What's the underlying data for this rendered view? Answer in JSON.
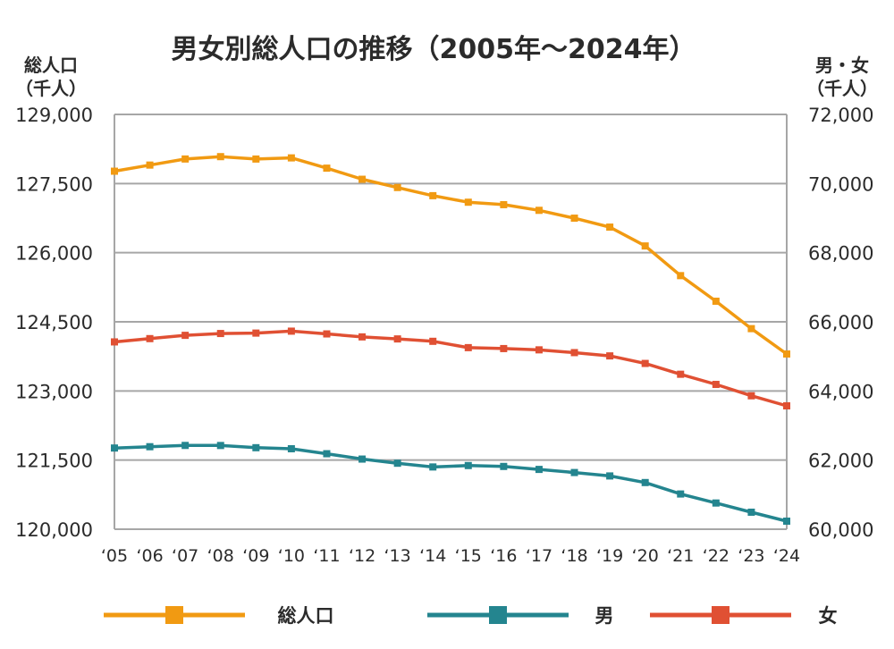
{
  "chart_data": {
    "type": "line",
    "title": "男女別総人口の推移（2005年～2024年）",
    "y_left_label_line1": "総人口",
    "y_left_label_line2": "（千人）",
    "y_right_label_line1": "男・女",
    "y_right_label_line2": "（千人）",
    "categories": [
      "‘05",
      "‘06",
      "‘07",
      "‘08",
      "‘09",
      "‘10",
      "‘11",
      "‘12",
      "‘13",
      "‘14",
      "‘15",
      "‘16",
      "‘17",
      "‘18",
      "‘19",
      "‘20",
      "‘21",
      "‘22",
      "‘23",
      "‘24"
    ],
    "y_left_ticks": [
      "120,000",
      "121,500",
      "123,000",
      "124,500",
      "126,000",
      "127,500",
      "129,000"
    ],
    "y_right_ticks": [
      "60,000",
      "62,000",
      "64,000",
      "66,000",
      "68,000",
      "70,000",
      "72,000"
    ],
    "y_left_range": [
      120000,
      129000
    ],
    "y_right_range": [
      60000,
      72000
    ],
    "grid": true,
    "legend_position": "bottom",
    "series": [
      {
        "name": "総人口",
        "axis": "left",
        "color": "#f19a12",
        "values": [
          127768,
          127901,
          128033,
          128084,
          128032,
          128057,
          127834,
          127593,
          127414,
          127237,
          127095,
          127042,
          126919,
          126749,
          126555,
          126146,
          125502,
          124947,
          124352,
          123802
        ]
      },
      {
        "name": "男",
        "axis": "right",
        "color": "#24858f",
        "values": [
          62349,
          62387,
          62424,
          62422,
          62358,
          62328,
          62184,
          62029,
          61909,
          61801,
          61842,
          61816,
          61730,
          61640,
          61541,
          61350,
          61019,
          60758,
          60492,
          60233
        ]
      },
      {
        "name": "女",
        "axis": "right",
        "color": "#e05033",
        "values": [
          65419,
          65514,
          65609,
          65662,
          65674,
          65730,
          65650,
          65564,
          65505,
          65436,
          65253,
          65226,
          65189,
          65109,
          65014,
          64796,
          64483,
          64189,
          63860,
          63569
        ]
      }
    ]
  }
}
